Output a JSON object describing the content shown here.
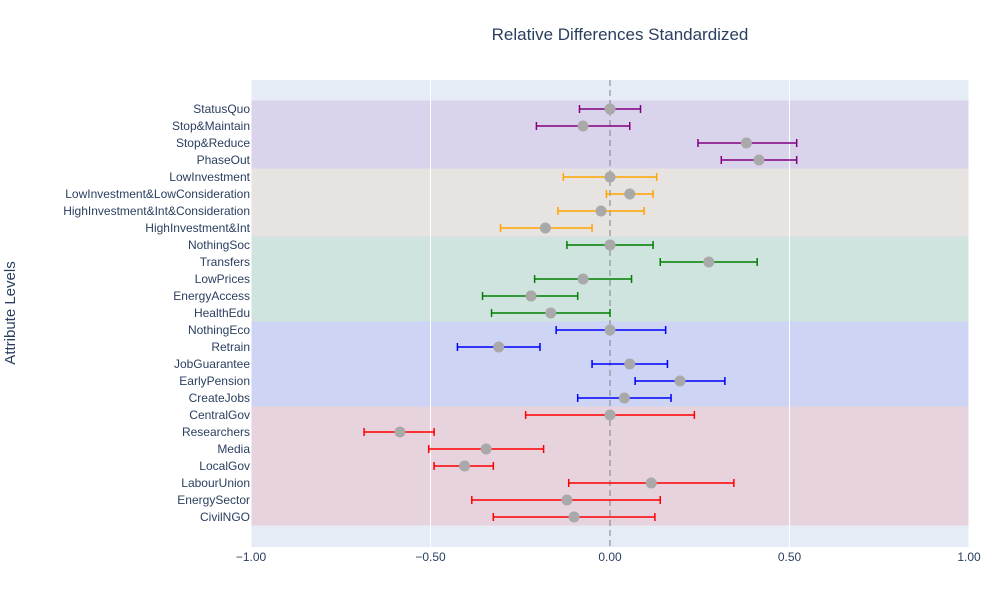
{
  "chart_data": {
    "type": "scatter",
    "title": "Relative Differences Standardized",
    "xlabel": "",
    "ylabel": "Attribute Levels",
    "xlim": [
      -1.0,
      1.0
    ],
    "xticks": [
      "−1.00",
      "−0.50",
      "0.00",
      "0.50",
      "1.00"
    ],
    "xtick_values": [
      -1.0,
      -0.5,
      0.0,
      0.5,
      1.0
    ],
    "grid": true,
    "reference_line_x": 0,
    "point_color": "#a9a9a9",
    "levels": [
      {
        "label": "StatusQuo",
        "value": 0.0,
        "lower": -0.085,
        "upper": 0.085,
        "group": "purple"
      },
      {
        "label": "Stop&Maintain",
        "value": -0.075,
        "lower": -0.205,
        "upper": 0.055,
        "group": "purple"
      },
      {
        "label": "Stop&Reduce",
        "value": 0.38,
        "lower": 0.245,
        "upper": 0.52,
        "group": "purple"
      },
      {
        "label": "PhaseOut",
        "value": 0.415,
        "lower": 0.31,
        "upper": 0.52,
        "group": "purple"
      },
      {
        "label": "LowInvestment",
        "value": 0.0,
        "lower": -0.13,
        "upper": 0.13,
        "group": "orange"
      },
      {
        "label": "LowInvestment&LowConsideration",
        "value": 0.055,
        "lower": -0.01,
        "upper": 0.12,
        "group": "orange"
      },
      {
        "label": "HighInvestment&Int&Consideration",
        "value": -0.025,
        "lower": -0.145,
        "upper": 0.095,
        "group": "orange"
      },
      {
        "label": "HighInvestment&Int",
        "value": -0.18,
        "lower": -0.305,
        "upper": -0.05,
        "group": "orange"
      },
      {
        "label": "NothingSoc",
        "value": 0.0,
        "lower": -0.12,
        "upper": 0.12,
        "group": "green"
      },
      {
        "label": "Transfers",
        "value": 0.275,
        "lower": 0.14,
        "upper": 0.41,
        "group": "green"
      },
      {
        "label": "LowPrices",
        "value": -0.075,
        "lower": -0.21,
        "upper": 0.06,
        "group": "green"
      },
      {
        "label": "EnergyAccess",
        "value": -0.22,
        "lower": -0.355,
        "upper": -0.09,
        "group": "green"
      },
      {
        "label": "HealthEdu",
        "value": -0.165,
        "lower": -0.33,
        "upper": 0.0,
        "group": "green"
      },
      {
        "label": "NothingEco",
        "value": 0.0,
        "lower": -0.15,
        "upper": 0.155,
        "group": "blue"
      },
      {
        "label": "Retrain",
        "value": -0.31,
        "lower": -0.425,
        "upper": -0.195,
        "group": "blue"
      },
      {
        "label": "JobGuarantee",
        "value": 0.055,
        "lower": -0.05,
        "upper": 0.16,
        "group": "blue"
      },
      {
        "label": "EarlyPension",
        "value": 0.195,
        "lower": 0.07,
        "upper": 0.32,
        "group": "blue"
      },
      {
        "label": "CreateJobs",
        "value": 0.04,
        "lower": -0.09,
        "upper": 0.17,
        "group": "blue"
      },
      {
        "label": "CentralGov",
        "value": 0.0,
        "lower": -0.235,
        "upper": 0.235,
        "group": "red"
      },
      {
        "label": "Researchers",
        "value": -0.585,
        "lower": -0.685,
        "upper": -0.49,
        "group": "red"
      },
      {
        "label": "Media",
        "value": -0.345,
        "lower": -0.505,
        "upper": -0.185,
        "group": "red"
      },
      {
        "label": "LocalGov",
        "value": -0.405,
        "lower": -0.49,
        "upper": -0.325,
        "group": "red"
      },
      {
        "label": "LabourUnion",
        "value": 0.115,
        "lower": -0.115,
        "upper": 0.345,
        "group": "red"
      },
      {
        "label": "EnergySector",
        "value": -0.12,
        "lower": -0.385,
        "upper": 0.14,
        "group": "red"
      },
      {
        "label": "CivilNGO",
        "value": -0.1,
        "lower": -0.325,
        "upper": 0.125,
        "group": "red"
      }
    ],
    "groups": {
      "purple": {
        "line_color": "#800080",
        "band_color": "#d9d3ec"
      },
      "orange": {
        "line_color": "#ffa500",
        "band_color": "#e6e3e0"
      },
      "green": {
        "line_color": "#008000",
        "band_color": "#cfe3df"
      },
      "blue": {
        "line_color": "#0000ff",
        "band_color": "#cdd4f4"
      },
      "red": {
        "line_color": "#ff0000",
        "band_color": "#e6d3de"
      }
    },
    "plot_background": "#e5ecf6"
  }
}
